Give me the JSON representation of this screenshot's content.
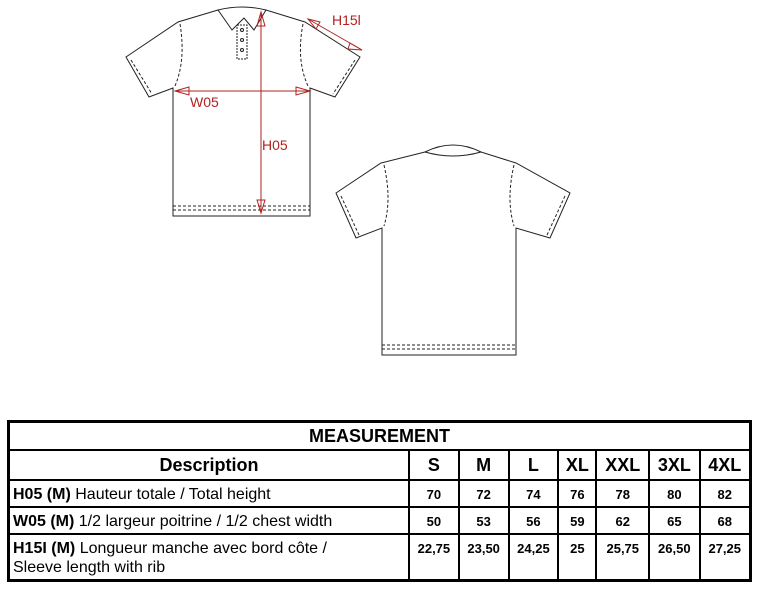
{
  "drawing": {
    "labels": {
      "height": "H05",
      "width": "W05",
      "sleeve": "H15l"
    },
    "measure_color": "#b22222"
  },
  "table": {
    "title": "MEASUREMENT",
    "description_header": "Description",
    "sizes": [
      "S",
      "M",
      "L",
      "XL",
      "XXL",
      "3XL",
      "4XL"
    ],
    "rows": [
      {
        "code": "H05 (M)",
        "label": "Hauteur totale / Total height",
        "values": [
          "70",
          "72",
          "74",
          "76",
          "78",
          "80",
          "82"
        ]
      },
      {
        "code": "W05 (M)",
        "label": "1/2 largeur poitrine / 1/2 chest width",
        "values": [
          "50",
          "53",
          "56",
          "59",
          "62",
          "65",
          "68"
        ]
      },
      {
        "code": "H15I (M)",
        "label": "Longueur manche avec bord côte /",
        "label2": "Sleeve length with rib",
        "values": [
          "22,75",
          "23,50",
          "24,25",
          "25",
          "25,75",
          "26,50",
          "27,25"
        ]
      }
    ]
  }
}
